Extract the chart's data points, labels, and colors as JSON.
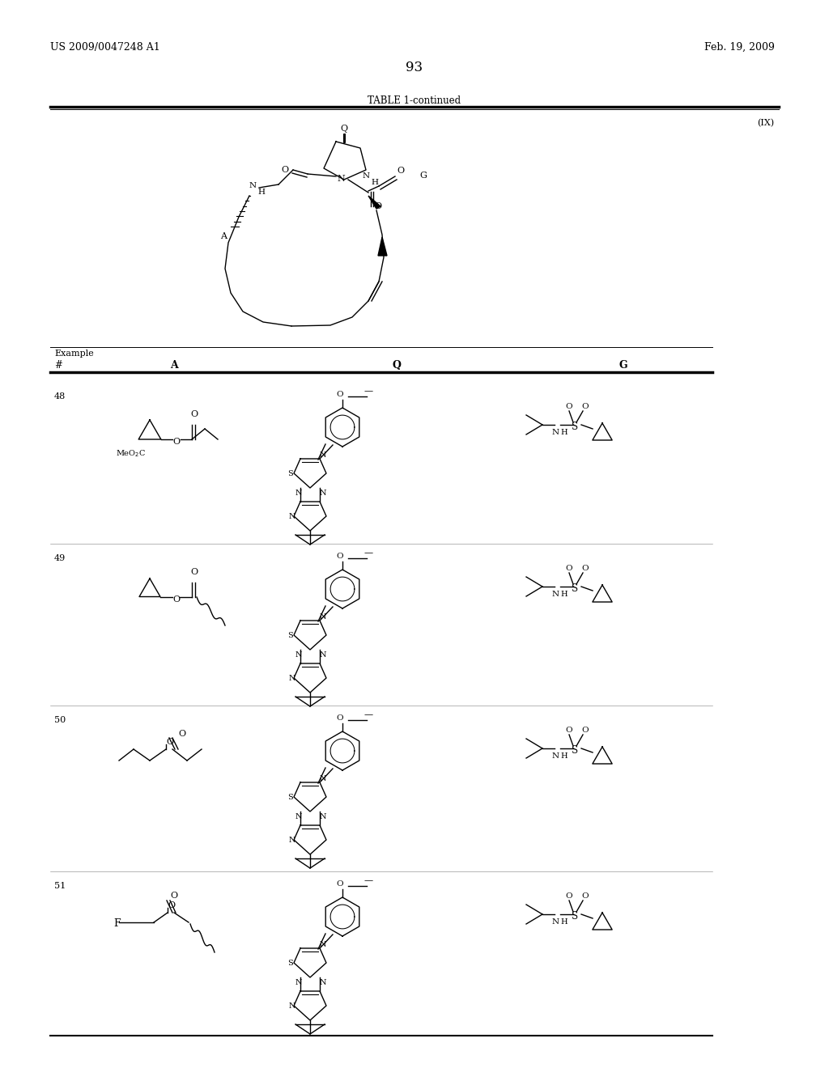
{
  "patent_number": "US 2009/0047248 A1",
  "date": "Feb. 19, 2009",
  "page_number": "93",
  "table_title": "TABLE 1-continued",
  "formula_label": "(IX)",
  "background_color": "#ffffff",
  "line_color": "#000000",
  "text_color": "#000000"
}
